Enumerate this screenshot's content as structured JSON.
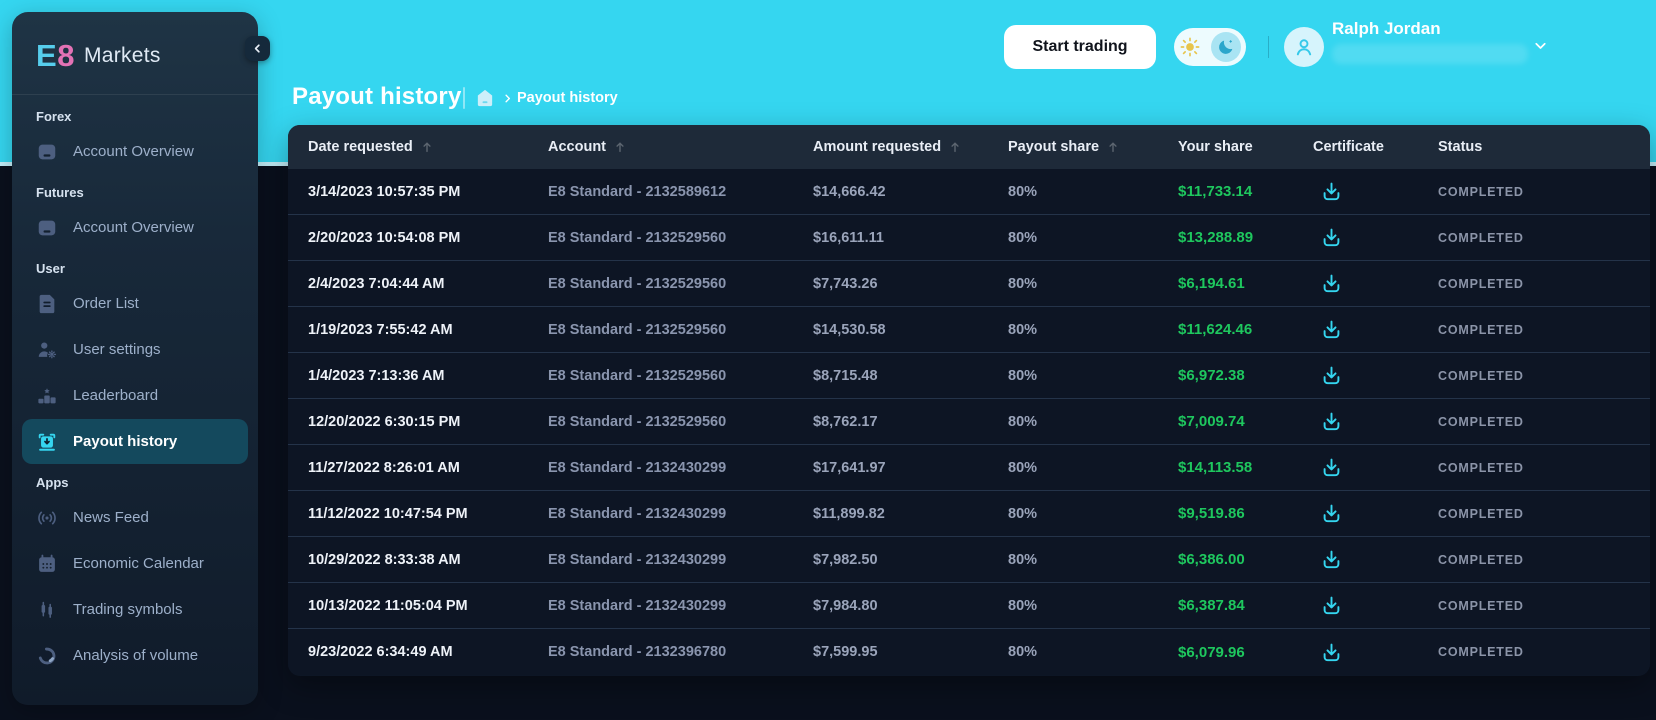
{
  "brand": {
    "mark_primary": "E",
    "mark_secondary": "8",
    "text": "Markets"
  },
  "topbar": {
    "start_trading_label": "Start trading",
    "user_name": "Ralph Jordan"
  },
  "page_header": {
    "title": "Payout history",
    "breadcrumb_current": "Payout history"
  },
  "sidebar": {
    "sections": [
      {
        "label": "Forex",
        "items": [
          {
            "label": "Account Overview",
            "icon": "account-overview-icon",
            "active": false
          }
        ]
      },
      {
        "label": "Futures",
        "items": [
          {
            "label": "Account Overview",
            "icon": "account-overview-icon",
            "active": false
          }
        ]
      },
      {
        "label": "User",
        "items": [
          {
            "label": "Order List",
            "icon": "order-list-icon",
            "active": false
          },
          {
            "label": "User settings",
            "icon": "user-settings-icon",
            "active": false
          },
          {
            "label": "Leaderboard",
            "icon": "leaderboard-icon",
            "active": false
          },
          {
            "label": "Payout history",
            "icon": "payout-history-icon",
            "active": true
          }
        ]
      },
      {
        "label": "Apps",
        "items": [
          {
            "label": "News Feed",
            "icon": "news-feed-icon",
            "active": false
          },
          {
            "label": "Economic Calendar",
            "icon": "economic-calendar-icon",
            "active": false
          },
          {
            "label": "Trading symbols",
            "icon": "trading-symbols-icon",
            "active": false
          },
          {
            "label": "Analysis of volume",
            "icon": "analysis-of-volume-icon",
            "active": false
          }
        ]
      }
    ]
  },
  "table": {
    "columns": [
      {
        "label": "Date requested",
        "sortable": true
      },
      {
        "label": "Account",
        "sortable": true
      },
      {
        "label": "Amount requested",
        "sortable": true
      },
      {
        "label": "Payout share",
        "sortable": true
      },
      {
        "label": "Your share",
        "sortable": false
      },
      {
        "label": "Certificate",
        "sortable": false
      },
      {
        "label": "Status",
        "sortable": false
      }
    ],
    "rows": [
      {
        "date": "3/14/2023 10:57:35 PM",
        "account": "E8 Standard - 2132589612",
        "amount": "$14,666.42",
        "payout_share": "80%",
        "your_share": "$11,733.14",
        "certificate_icon": "download-icon",
        "status": "COMPLETED"
      },
      {
        "date": "2/20/2023 10:54:08 PM",
        "account": "E8 Standard - 2132529560",
        "amount": "$16,611.11",
        "payout_share": "80%",
        "your_share": "$13,288.89",
        "certificate_icon": "download-icon",
        "status": "COMPLETED"
      },
      {
        "date": "2/4/2023 7:04:44 AM",
        "account": "E8 Standard - 2132529560",
        "amount": "$7,743.26",
        "payout_share": "80%",
        "your_share": "$6,194.61",
        "certificate_icon": "download-icon",
        "status": "COMPLETED"
      },
      {
        "date": "1/19/2023 7:55:42 AM",
        "account": "E8 Standard - 2132529560",
        "amount": "$14,530.58",
        "payout_share": "80%",
        "your_share": "$11,624.46",
        "certificate_icon": "download-icon",
        "status": "COMPLETED"
      },
      {
        "date": "1/4/2023 7:13:36 AM",
        "account": "E8 Standard - 2132529560",
        "amount": "$8,715.48",
        "payout_share": "80%",
        "your_share": "$6,972.38",
        "certificate_icon": "download-icon",
        "status": "COMPLETED"
      },
      {
        "date": "12/20/2022 6:30:15 PM",
        "account": "E8 Standard - 2132529560",
        "amount": "$8,762.17",
        "payout_share": "80%",
        "your_share": "$7,009.74",
        "certificate_icon": "download-icon",
        "status": "COMPLETED"
      },
      {
        "date": "11/27/2022 8:26:01 AM",
        "account": "E8 Standard - 2132430299",
        "amount": "$17,641.97",
        "payout_share": "80%",
        "your_share": "$14,113.58",
        "certificate_icon": "download-icon",
        "status": "COMPLETED"
      },
      {
        "date": "11/12/2022 10:47:54 PM",
        "account": "E8 Standard - 2132430299",
        "amount": "$11,899.82",
        "payout_share": "80%",
        "your_share": "$9,519.86",
        "certificate_icon": "download-icon",
        "status": "COMPLETED"
      },
      {
        "date": "10/29/2022 8:33:38 AM",
        "account": "E8 Standard - 2132430299",
        "amount": "$7,982.50",
        "payout_share": "80%",
        "your_share": "$6,386.00",
        "certificate_icon": "download-icon",
        "status": "COMPLETED"
      },
      {
        "date": "10/13/2022 11:05:04 PM",
        "account": "E8 Standard - 2132430299",
        "amount": "$7,984.80",
        "payout_share": "80%",
        "your_share": "$6,387.84",
        "certificate_icon": "download-icon",
        "status": "COMPLETED"
      },
      {
        "date": "9/23/2022 6:34:49 AM",
        "account": "E8 Standard - 2132396780",
        "amount": "$7,599.95",
        "payout_share": "80%",
        "your_share": "$6,079.96",
        "certificate_icon": "download-icon",
        "status": "COMPLETED"
      }
    ]
  },
  "colors": {
    "accent_cyan": "#35d6f0",
    "positive_green": "#1ec75e",
    "header_band": "#35d6f0",
    "sidebar_active_bg": "#14495d",
    "table_header_bg": "#1e2a39",
    "table_body_bg": "#0d1524",
    "status_text": "#8b94a8"
  }
}
